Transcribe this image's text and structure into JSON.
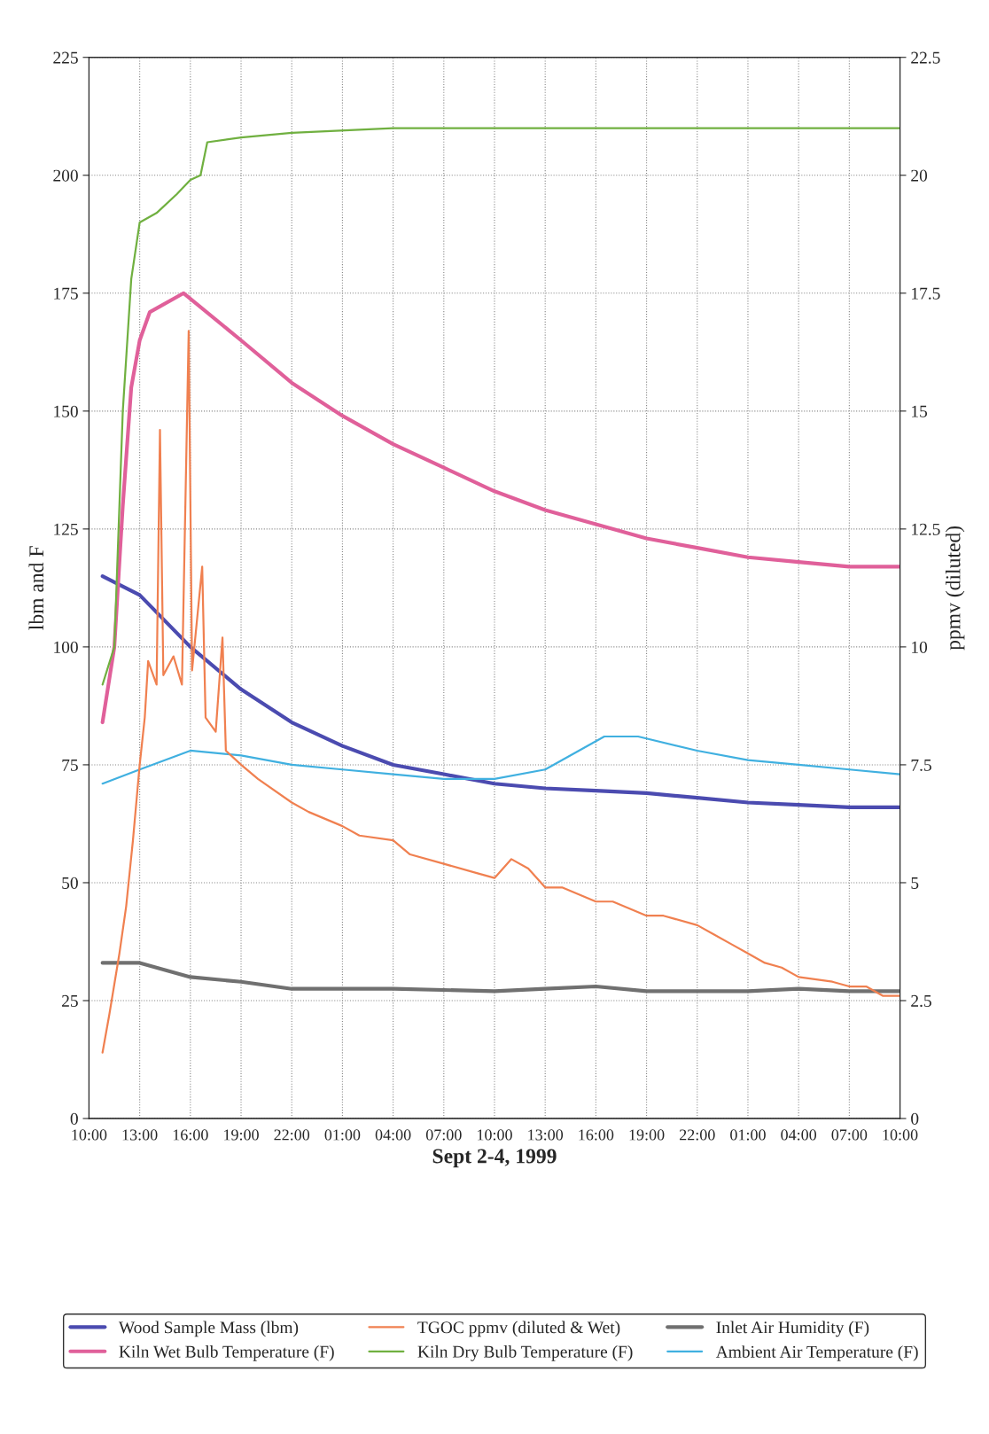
{
  "chart_data": {
    "type": "line",
    "xlabel": "Sept 2-4, 1999",
    "ylabel": "lbm and F",
    "y2label": "ppmv (diluted)",
    "xlim": [
      "1999-09-02T10:00",
      "1999-09-04T10:00"
    ],
    "xticks": [
      {
        "value": "1999-09-02T10:00",
        "label": "10:00"
      },
      {
        "value": "1999-09-02T13:00",
        "label": "13:00"
      },
      {
        "value": "1999-09-02T16:00",
        "label": "16:00"
      },
      {
        "value": "1999-09-02T19:00",
        "label": "19:00"
      },
      {
        "value": "1999-09-02T22:00",
        "label": "22:00"
      },
      {
        "value": "1999-09-03T01:00",
        "label": "01:00"
      },
      {
        "value": "1999-09-03T04:00",
        "label": "04:00"
      },
      {
        "value": "1999-09-03T07:00",
        "label": "07:00"
      },
      {
        "value": "1999-09-03T10:00",
        "label": "10:00"
      },
      {
        "value": "1999-09-03T13:00",
        "label": "13:00"
      },
      {
        "value": "1999-09-03T16:00",
        "label": "16:00"
      },
      {
        "value": "1999-09-03T19:00",
        "label": "19:00"
      },
      {
        "value": "1999-09-03T22:00",
        "label": "22:00"
      },
      {
        "value": "1999-09-04T01:00",
        "label": "01:00"
      },
      {
        "value": "1999-09-04T04:00",
        "label": "04:00"
      },
      {
        "value": "1999-09-04T07:00",
        "label": "07:00"
      },
      {
        "value": "1999-09-04T10:00",
        "label": "10:00"
      }
    ],
    "ylim": [
      0,
      225
    ],
    "yticks": [
      0,
      25,
      50,
      75,
      100,
      125,
      150,
      175,
      200,
      225
    ],
    "y2lim": [
      0,
      22.5
    ],
    "y2ticks": [
      0,
      2.5,
      5,
      7.5,
      10,
      12.5,
      15,
      17.5,
      20,
      22.5
    ],
    "grid": true,
    "legend": "bottom",
    "series": [
      {
        "name": "Wood Sample Mass (lbm)",
        "color": "#4b4bb0",
        "x": [
          "1999-09-02T10:48",
          "1999-09-02T13:00",
          "1999-09-02T16:00",
          "1999-09-02T19:00",
          "1999-09-02T22:00",
          "1999-09-03T01:00",
          "1999-09-03T04:00",
          "1999-09-03T07:00",
          "1999-09-03T10:00",
          "1999-09-03T13:00",
          "1999-09-03T16:00",
          "1999-09-03T19:00",
          "1999-09-03T22:00",
          "1999-09-04T01:00",
          "1999-09-04T04:00",
          "1999-09-04T07:00",
          "1999-09-04T10:00"
        ],
        "values": [
          115,
          111,
          100,
          91,
          84,
          79,
          75,
          73,
          71,
          70,
          69.5,
          69,
          68,
          67,
          66.5,
          66,
          66
        ]
      },
      {
        "name": "Kiln Wet Bulb Temperature (F)",
        "color": "#e0609a",
        "x": [
          "1999-09-02T10:48",
          "1999-09-02T11:30",
          "1999-09-02T12:00",
          "1999-09-02T12:30",
          "1999-09-02T13:00",
          "1999-09-02T13:36",
          "1999-09-02T15:36",
          "1999-09-02T19:00",
          "1999-09-02T22:00",
          "1999-09-03T01:00",
          "1999-09-03T04:00",
          "1999-09-03T07:00",
          "1999-09-03T10:00",
          "1999-09-03T13:00",
          "1999-09-03T16:00",
          "1999-09-03T19:00",
          "1999-09-03T22:00",
          "1999-09-04T01:00",
          "1999-09-04T04:00",
          "1999-09-04T07:00",
          "1999-09-04T10:00"
        ],
        "values": [
          84,
          100,
          130,
          155,
          165,
          171,
          175,
          165,
          156,
          149,
          143,
          138,
          133,
          129,
          126,
          123,
          121,
          119,
          118,
          117,
          117
        ]
      },
      {
        "name": "TGOC ppmv (diluted & Wet)",
        "color": "#f08050",
        "axis": "y2",
        "x": [
          "1999-09-02T10:48",
          "1999-09-02T11:12",
          "1999-09-02T11:48",
          "1999-09-02T12:12",
          "1999-09-02T12:36",
          "1999-09-02T13:00",
          "1999-09-02T13:18",
          "1999-09-02T13:30",
          "1999-09-02T14:00",
          "1999-09-02T14:12",
          "1999-09-02T14:24",
          "1999-09-02T15:00",
          "1999-09-02T15:30",
          "1999-09-02T15:54",
          "1999-09-02T16:06",
          "1999-09-02T16:42",
          "1999-09-02T16:54",
          "1999-09-02T17:30",
          "1999-09-02T17:54",
          "1999-09-02T18:06",
          "1999-09-02T19:00",
          "1999-09-02T20:00",
          "1999-09-02T22:00",
          "1999-09-02T23:00",
          "1999-09-03T01:00",
          "1999-09-03T02:00",
          "1999-09-03T04:00",
          "1999-09-03T05:00",
          "1999-09-03T07:00",
          "1999-09-03T09:00",
          "1999-09-03T10:00",
          "1999-09-03T11:00",
          "1999-09-03T12:00",
          "1999-09-03T13:00",
          "1999-09-03T14:00",
          "1999-09-03T16:00",
          "1999-09-03T17:00",
          "1999-09-03T19:00",
          "1999-09-03T20:00",
          "1999-09-03T22:00",
          "1999-09-03T23:00",
          "1999-09-04T00:00",
          "1999-09-04T01:00",
          "1999-09-04T02:00",
          "1999-09-04T03:00",
          "1999-09-04T04:00",
          "1999-09-04T06:00",
          "1999-09-04T07:00",
          "1999-09-04T08:00",
          "1999-09-04T09:00",
          "1999-09-04T10:00"
        ],
        "values": [
          1.4,
          2.2,
          3.5,
          4.5,
          5.9,
          7.5,
          8.5,
          9.7,
          9.2,
          14.6,
          9.4,
          9.8,
          9.2,
          16.7,
          9.5,
          11.7,
          8.5,
          8.2,
          10.2,
          7.8,
          7.5,
          7.2,
          6.7,
          6.5,
          6.2,
          6.0,
          5.9,
          5.6,
          5.4,
          5.2,
          5.1,
          5.5,
          5.3,
          4.9,
          4.9,
          4.6,
          4.6,
          4.3,
          4.3,
          4.1,
          3.9,
          3.7,
          3.5,
          3.3,
          3.2,
          3.0,
          2.9,
          2.8,
          2.8,
          2.6,
          2.6
        ]
      },
      {
        "name": "Kiln Dry Bulb Temperature (F)",
        "color": "#70b040",
        "x": [
          "1999-09-02T10:48",
          "1999-09-02T11:30",
          "1999-09-02T12:00",
          "1999-09-02T12:30",
          "1999-09-02T13:00",
          "1999-09-02T14:00",
          "1999-09-02T15:12",
          "1999-09-02T16:00",
          "1999-09-02T16:36",
          "1999-09-02T17:00",
          "1999-09-02T19:00",
          "1999-09-02T22:00",
          "1999-09-03T04:00",
          "1999-09-03T10:00",
          "1999-09-03T16:00",
          "1999-09-03T22:00",
          "1999-09-04T04:00",
          "1999-09-04T10:00"
        ],
        "values": [
          92,
          100,
          150,
          178,
          190,
          192,
          196,
          199,
          200,
          207,
          208,
          209,
          210,
          210,
          210,
          210,
          210,
          210
        ]
      },
      {
        "name": "Inlet Air Humidity (F)",
        "color": "#707070",
        "x": [
          "1999-09-02T10:48",
          "1999-09-02T13:00",
          "1999-09-02T16:00",
          "1999-09-02T19:00",
          "1999-09-02T22:00",
          "1999-09-03T04:00",
          "1999-09-03T10:00",
          "1999-09-03T13:00",
          "1999-09-03T16:00",
          "1999-09-03T19:00",
          "1999-09-03T22:00",
          "1999-09-04T01:00",
          "1999-09-04T04:00",
          "1999-09-04T07:00",
          "1999-09-04T10:00"
        ],
        "values": [
          33,
          33,
          30,
          29,
          27.5,
          27.5,
          27,
          27.5,
          28,
          27,
          27,
          27,
          27.5,
          27,
          27
        ]
      },
      {
        "name": "Ambient Air Temperature (F)",
        "color": "#40b0e0",
        "x": [
          "1999-09-02T10:48",
          "1999-09-02T13:00",
          "1999-09-02T16:00",
          "1999-09-02T19:00",
          "1999-09-02T22:00",
          "1999-09-03T01:00",
          "1999-09-03T04:00",
          "1999-09-03T07:00",
          "1999-09-03T10:00",
          "1999-09-03T13:00",
          "1999-09-03T16:30",
          "1999-09-03T18:30",
          "1999-09-03T22:00",
          "1999-09-04T01:00",
          "1999-09-04T04:00",
          "1999-09-04T07:00",
          "1999-09-04T10:00"
        ],
        "values": [
          71,
          74,
          78,
          77,
          75,
          74,
          73,
          72,
          72,
          74,
          81,
          81,
          78,
          76,
          75,
          74,
          73
        ]
      }
    ]
  }
}
